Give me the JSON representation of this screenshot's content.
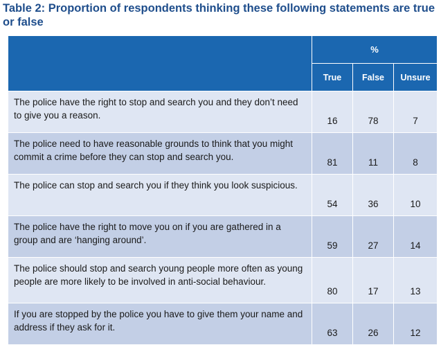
{
  "title": "Table 2: Proportion of respondents thinking these following statements are true or false",
  "table": {
    "unit_header": "%",
    "columns": [
      "True",
      "False",
      "Unsure"
    ],
    "rows": [
      {
        "statement": "The police have the right to stop and search you and they don’t need to give you a reason.",
        "true": "16",
        "false": "78",
        "unsure": "7"
      },
      {
        "statement": "The police need to have reasonable grounds to think that you might commit a crime before they can stop and search you.",
        "true": "81",
        "false": "11",
        "unsure": "8"
      },
      {
        "statement": "The police can stop and search you if they think you look suspicious.",
        "true": "54",
        "false": "36",
        "unsure": "10"
      },
      {
        "statement": "The police have the right to move you on if you are gathered in a group and are ‘hanging around’.",
        "true": "59",
        "false": "27",
        "unsure": "14"
      },
      {
        "statement": "The police should stop and search young people more often as young people are more likely to be involved in anti-social behaviour.",
        "true": "80",
        "false": "17",
        "unsure": "13"
      },
      {
        "statement": "If you are stopped by the police you have to give them your name and address if they ask for it.",
        "true": "63",
        "false": "26",
        "unsure": "12"
      }
    ]
  },
  "colors": {
    "title": "#1f4e8c",
    "header_bg": "#1b67b0",
    "row_light": "#dfe6f3",
    "row_dark": "#c3cfe6"
  }
}
